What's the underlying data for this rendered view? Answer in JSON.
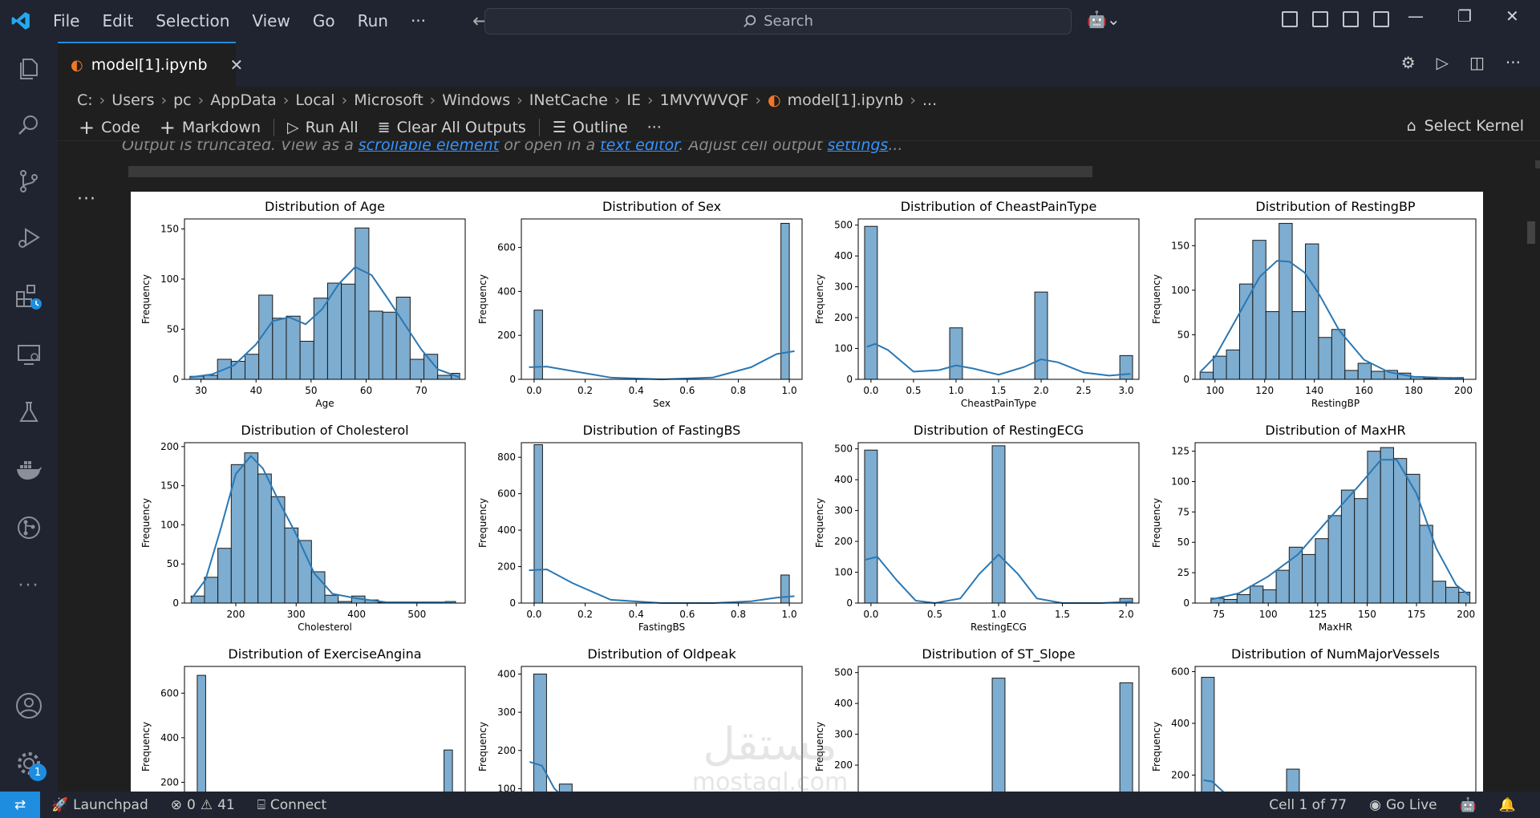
{
  "menu": [
    "File",
    "Edit",
    "Selection",
    "View",
    "Go",
    "Run",
    "···"
  ],
  "search": {
    "label": "Search"
  },
  "tab": {
    "label": "model[1].ipynb"
  },
  "breadcrumb": [
    "C:",
    "Users",
    "pc",
    "AppData",
    "Local",
    "Microsoft",
    "Windows",
    "INetCache",
    "IE",
    "1MVYWVQF",
    "model[1].ipynb",
    "..."
  ],
  "toolbar": {
    "code": "Code",
    "markdown": "Markdown",
    "run_all": "Run All",
    "clear_outputs": "Clear All Outputs",
    "outline": "Outline",
    "more": "···",
    "kernel": "Select Kernel"
  },
  "output_notice": {
    "prefix": "Output is truncated. View as a ",
    "link1": "scrollable element",
    "middle": " or open in a ",
    "link2": "text editor",
    "suffix": ". Adjust cell output ",
    "link3": "settings",
    "end": "..."
  },
  "cell": {
    "more": "···"
  },
  "status": {
    "launchpad": "Launchpad",
    "errors": "0",
    "warnings": "41",
    "connect": "Connect",
    "cell": "Cell 1 of 77",
    "golive": "Go Live"
  },
  "activity_badge": "1",
  "watermark": {
    "top": "مستقل",
    "bottom": "mostaql.com"
  },
  "colors": {
    "bar": "#7dadd0",
    "bar_edge": "#1a1a1a",
    "kde": "#2a78b4",
    "accent": "#1e8de0"
  },
  "chart_data": [
    {
      "type": "bar",
      "title": "Distribution of Age",
      "xlabel": "Age",
      "ylabel": "Frequency",
      "xlim": [
        27,
        78
      ],
      "ylim": [
        0,
        160
      ],
      "xticks": [
        30,
        40,
        50,
        60,
        70
      ],
      "yticks": [
        0,
        50,
        100,
        150
      ],
      "bins": {
        "edges": [
          28,
          30.5,
          33,
          35.5,
          38,
          40.5,
          43,
          45.5,
          48,
          50.5,
          53,
          55.5,
          58,
          60.5,
          63,
          65.5,
          68,
          70.5,
          73,
          75.5,
          77
        ],
        "values": [
          3,
          4,
          20,
          18,
          25,
          84,
          61,
          63,
          38,
          81,
          96,
          95,
          151,
          68,
          67,
          82,
          20,
          25,
          4,
          6
        ]
      },
      "kde": [
        [
          28,
          2
        ],
        [
          32,
          5
        ],
        [
          36,
          14
        ],
        [
          40,
          35
        ],
        [
          43,
          58
        ],
        [
          46,
          62
        ],
        [
          49,
          55
        ],
        [
          52,
          70
        ],
        [
          55,
          95
        ],
        [
          58,
          112
        ],
        [
          61,
          104
        ],
        [
          64,
          80
        ],
        [
          67,
          55
        ],
        [
          70,
          30
        ],
        [
          73,
          10
        ],
        [
          77,
          2
        ]
      ]
    },
    {
      "type": "bar",
      "title": "Distribution of Sex",
      "xlabel": "Sex",
      "ylabel": "Frequency",
      "xlim": [
        -0.05,
        1.05
      ],
      "ylim": [
        0,
        730
      ],
      "xticks": [
        0.0,
        0.2,
        0.4,
        0.6,
        0.8,
        1.0
      ],
      "yticks": [
        0,
        200,
        400,
        600
      ],
      "bins": {
        "edges": [
          0,
          0.033
        ],
        "values": [
          315
        ],
        "extra": [
          [
            0.967,
            1.0,
            710
          ]
        ]
      },
      "kde": [
        [
          -0.02,
          55
        ],
        [
          0.05,
          58
        ],
        [
          0.15,
          38
        ],
        [
          0.3,
          8
        ],
        [
          0.5,
          0
        ],
        [
          0.7,
          8
        ],
        [
          0.85,
          55
        ],
        [
          0.95,
          115
        ],
        [
          1.02,
          128
        ]
      ]
    },
    {
      "type": "bar",
      "title": "Distribution of CheastPainType",
      "xlabel": "CheastPainType",
      "ylabel": "Frequency",
      "xlim": [
        -0.15,
        3.15
      ],
      "ylim": [
        0,
        520
      ],
      "xticks": [
        0.0,
        0.5,
        1.0,
        1.5,
        2.0,
        2.5,
        3.0
      ],
      "yticks": [
        0,
        100,
        200,
        300,
        400,
        500
      ],
      "bars": [
        [
          0.0,
          496
        ],
        [
          1.0,
          167
        ],
        [
          2.0,
          283
        ],
        [
          3.0,
          77
        ]
      ],
      "bar_width": 0.15,
      "kde": [
        [
          -0.05,
          105
        ],
        [
          0.05,
          115
        ],
        [
          0.2,
          95
        ],
        [
          0.5,
          25
        ],
        [
          0.8,
          30
        ],
        [
          1.0,
          45
        ],
        [
          1.2,
          35
        ],
        [
          1.5,
          15
        ],
        [
          1.8,
          40
        ],
        [
          2.0,
          65
        ],
        [
          2.2,
          55
        ],
        [
          2.5,
          22
        ],
        [
          2.8,
          12
        ],
        [
          3.05,
          18
        ]
      ]
    },
    {
      "type": "bar",
      "title": "Distribution of RestingBP",
      "xlabel": "RestingBP",
      "ylabel": "Frequency",
      "xlim": [
        92,
        205
      ],
      "ylim": [
        0,
        180
      ],
      "xticks": [
        100,
        120,
        140,
        160,
        180,
        200
      ],
      "yticks": [
        0,
        50,
        100,
        150
      ],
      "bins": {
        "edges": [
          94,
          99.3,
          104.6,
          109.9,
          115.2,
          120.5,
          125.8,
          131.1,
          136.4,
          141.7,
          147,
          152.3,
          157.6,
          162.9,
          168.2,
          173.5,
          178.8,
          184.1,
          189.4,
          194.7,
          200
        ],
        "values": [
          8,
          26,
          33,
          107,
          156,
          76,
          175,
          76,
          152,
          47,
          56,
          10,
          18,
          9,
          10,
          7,
          3,
          1,
          2,
          2
        ]
      },
      "kde": [
        [
          94,
          8
        ],
        [
          100,
          25
        ],
        [
          110,
          75
        ],
        [
          118,
          115
        ],
        [
          125,
          133
        ],
        [
          130,
          132
        ],
        [
          136,
          120
        ],
        [
          142,
          95
        ],
        [
          150,
          55
        ],
        [
          160,
          22
        ],
        [
          170,
          8
        ],
        [
          180,
          3
        ],
        [
          200,
          1
        ]
      ]
    },
    {
      "type": "bar",
      "title": "Distribution of Cholesterol",
      "xlabel": "Cholesterol",
      "ylabel": "Frequency",
      "xlim": [
        115,
        580
      ],
      "ylim": [
        0,
        205
      ],
      "xticks": [
        200,
        300,
        400,
        500
      ],
      "yticks": [
        0,
        50,
        100,
        150,
        200
      ],
      "bins": {
        "edges": [
          126,
          148.15,
          170.3,
          192.45,
          214.6,
          236.75,
          258.9,
          281.05,
          303.2,
          325.35,
          347.5,
          369.65,
          391.8,
          413.95,
          436.1,
          458.25,
          480.4,
          502.55,
          524.7,
          546.85,
          564
        ],
        "values": [
          9,
          33,
          70,
          177,
          192,
          165,
          136,
          96,
          80,
          40,
          10,
          2,
          9,
          4,
          1,
          0,
          0,
          0,
          0,
          2
        ]
      },
      "kde": [
        [
          126,
          5
        ],
        [
          150,
          30
        ],
        [
          175,
          95
        ],
        [
          200,
          165
        ],
        [
          225,
          188
        ],
        [
          245,
          172
        ],
        [
          270,
          132
        ],
        [
          300,
          88
        ],
        [
          330,
          38
        ],
        [
          360,
          12
        ],
        [
          400,
          6
        ],
        [
          450,
          1
        ],
        [
          560,
          1
        ]
      ]
    },
    {
      "type": "bar",
      "title": "Distribution of FastingBS",
      "xlabel": "FastingBS",
      "ylabel": "Frequency",
      "xlim": [
        -0.05,
        1.05
      ],
      "ylim": [
        0,
        880
      ],
      "xticks": [
        0.0,
        0.2,
        0.4,
        0.6,
        0.8,
        1.0
      ],
      "yticks": [
        0,
        200,
        400,
        600,
        800
      ],
      "bins": {
        "edges": [
          0,
          0.033
        ],
        "values": [
          869
        ],
        "extra": [
          [
            0.967,
            1.0,
            154
          ]
        ]
      },
      "kde": [
        [
          -0.02,
          180
        ],
        [
          0.05,
          185
        ],
        [
          0.15,
          110
        ],
        [
          0.3,
          18
        ],
        [
          0.5,
          0
        ],
        [
          0.7,
          0
        ],
        [
          0.85,
          10
        ],
        [
          0.95,
          30
        ],
        [
          1.02,
          38
        ]
      ]
    },
    {
      "type": "bar",
      "title": "Distribution of RestingECG",
      "xlabel": "RestingECG",
      "ylabel": "Frequency",
      "xlim": [
        -0.1,
        2.1
      ],
      "ylim": [
        0,
        520
      ],
      "xticks": [
        0.0,
        0.5,
        1.0,
        1.5,
        2.0
      ],
      "yticks": [
        0,
        100,
        200,
        300,
        400,
        500
      ],
      "bars": [
        [
          0.0,
          496
        ],
        [
          1.0,
          510
        ],
        [
          2.0,
          15
        ]
      ],
      "bar_width": 0.1,
      "kde": [
        [
          -0.05,
          140
        ],
        [
          0.05,
          150
        ],
        [
          0.2,
          75
        ],
        [
          0.35,
          8
        ],
        [
          0.5,
          0
        ],
        [
          0.7,
          15
        ],
        [
          0.85,
          95
        ],
        [
          1.0,
          157
        ],
        [
          1.15,
          95
        ],
        [
          1.3,
          15
        ],
        [
          1.5,
          0
        ],
        [
          1.8,
          0
        ],
        [
          2.05,
          5
        ]
      ]
    },
    {
      "type": "bar",
      "title": "Distribution of MaxHR",
      "xlabel": "MaxHR",
      "ylabel": "Frequency",
      "xlim": [
        63,
        205
      ],
      "ylim": [
        0,
        132
      ],
      "xticks": [
        75,
        100,
        125,
        150,
        175,
        200
      ],
      "yticks": [
        0,
        25,
        50,
        75,
        100,
        125
      ],
      "bins": {
        "edges": [
          71,
          77.6,
          84.2,
          90.8,
          97.4,
          104,
          110.6,
          117.2,
          123.8,
          130.4,
          137,
          143.6,
          150.2,
          156.8,
          163.4,
          170,
          176.6,
          183.2,
          189.8,
          196.4,
          202
        ],
        "values": [
          4,
          3,
          7,
          14,
          11,
          27,
          46,
          40,
          53,
          72,
          93,
          86,
          125,
          128,
          119,
          106,
          64,
          18,
          13,
          9
        ]
      },
      "kde": [
        [
          71,
          3
        ],
        [
          85,
          8
        ],
        [
          100,
          22
        ],
        [
          115,
          40
        ],
        [
          130,
          68
        ],
        [
          145,
          95
        ],
        [
          157,
          118
        ],
        [
          165,
          118
        ],
        [
          175,
          90
        ],
        [
          185,
          45
        ],
        [
          195,
          15
        ],
        [
          202,
          6
        ]
      ]
    },
    {
      "type": "bar",
      "title": "Distribution of ExerciseAngina",
      "ylabel": "Frequency",
      "xlim": [
        -0.05,
        1.05
      ],
      "ylim": [
        0,
        720
      ],
      "yticks": [
        200,
        400,
        600
      ],
      "bins": {
        "edges": [
          0,
          0.033
        ],
        "values": [
          680
        ],
        "extra": [
          [
            0.967,
            1.0,
            345
          ]
        ]
      }
    },
    {
      "type": "bar",
      "title": "Distribution of Oldpeak",
      "ylabel": "Frequency",
      "xlim": [
        -0.3,
        6.5
      ],
      "ylim": [
        0,
        420
      ],
      "yticks": [
        100,
        200,
        300,
        400
      ],
      "bins": {
        "edges": [
          0,
          0.31,
          0.62,
          0.93
        ],
        "values": [
          400,
          80,
          112
        ]
      },
      "kde": [
        [
          -0.1,
          170
        ],
        [
          0.2,
          160
        ],
        [
          0.5,
          100
        ],
        [
          0.8,
          70
        ]
      ]
    },
    {
      "type": "bar",
      "title": "Distribution of ST_Slope",
      "ylabel": "Frequency",
      "xlim": [
        -0.1,
        2.1
      ],
      "ylim": [
        0,
        520
      ],
      "yticks": [
        100,
        200,
        300,
        400,
        500
      ],
      "bars": [
        [
          1.0,
          482
        ],
        [
          2.0,
          467
        ]
      ],
      "bar_width": 0.1,
      "kde": [
        [
          0.85,
          70
        ],
        [
          1.0,
          112
        ],
        [
          1.15,
          70
        ],
        [
          1.9,
          70
        ],
        [
          2.0,
          112
        ]
      ]
    },
    {
      "type": "bar",
      "title": "Distribution of NumMajorVessels",
      "ylabel": "Frequency",
      "xlim": [
        -0.15,
        3.15
      ],
      "ylim": [
        0,
        620
      ],
      "yticks": [
        200,
        400,
        600
      ],
      "bars": [
        [
          0.0,
          578
        ],
        [
          1.0,
          223
        ],
        [
          2.0,
          130
        ]
      ],
      "bar_width": 0.15,
      "kde": [
        [
          -0.05,
          180
        ],
        [
          0.05,
          175
        ],
        [
          0.2,
          130
        ]
      ]
    }
  ]
}
